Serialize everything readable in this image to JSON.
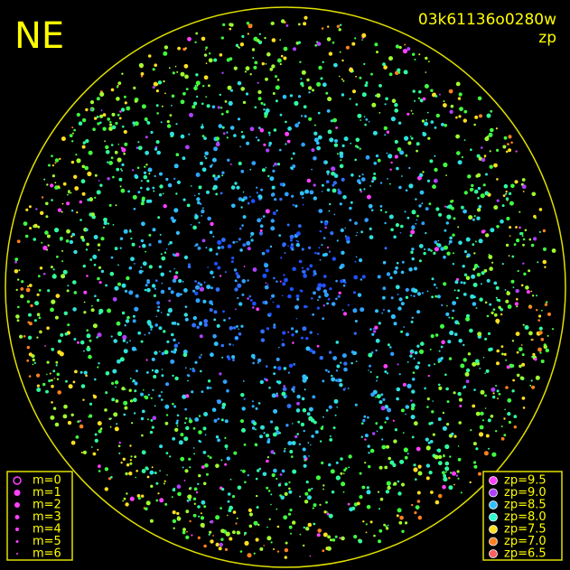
{
  "header": {
    "title": "NE",
    "id": "03k61136o0280w",
    "subtitle": "zp"
  },
  "magnitude_legend": {
    "items": [
      "m=0",
      "m=1",
      "m=2",
      "m=3",
      "m=4",
      "m=5",
      "m=6"
    ]
  },
  "zp_legend": {
    "items": [
      {
        "label": "zp=9.5",
        "color": "#ff40ff"
      },
      {
        "label": "zp=9.0",
        "color": "#b040ff"
      },
      {
        "label": "zp=8.5",
        "color": "#30c0ff"
      },
      {
        "label": "zp=8.0",
        "color": "#30ffd0"
      },
      {
        "label": "zp=7.5",
        "color": "#ffe020"
      },
      {
        "label": "zp=7.0",
        "color": "#ff8020"
      },
      {
        "label": "zp=6.5",
        "color": "#ff6060"
      }
    ]
  }
}
